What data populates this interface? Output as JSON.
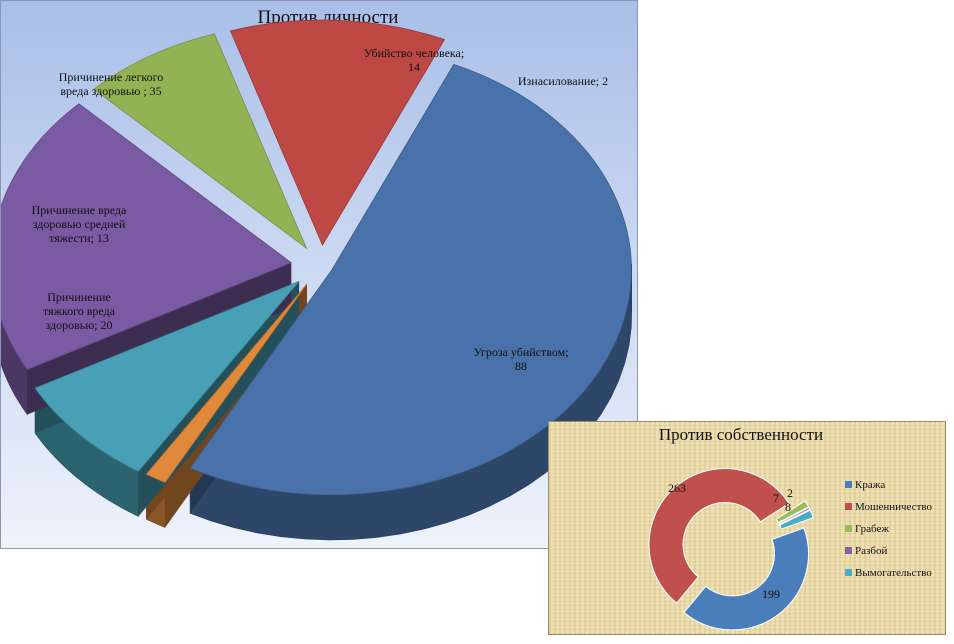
{
  "chart_data": [
    {
      "type": "pie",
      "title": "Против личности",
      "series": [
        {
          "values": [
            88,
            2,
            14,
            35,
            13,
            20
          ]
        }
      ],
      "categories": [
        "Угроза убийством",
        "Изнасилование",
        "Убийство человека",
        "Причинение легкого вреда здоровью",
        "Причинение вреда здоровью средней тяжести",
        "Причинение тяжкого вреда здоровью"
      ],
      "labels": [
        [
          "Угроза убийством;",
          "88"
        ],
        [
          "Изнасилование; 2"
        ],
        [
          "Убийство человека;",
          "14"
        ],
        [
          "Причинение легкого",
          "вреда здоровью ; 35"
        ],
        [
          "Причинение вреда",
          "здоровью средней",
          "тяжести; 13"
        ],
        [
          "Причинение",
          "тяжкого вреда",
          "здоровью; 20"
        ]
      ],
      "colors": [
        "#4a72aa",
        "#e1893a",
        "#47a0b6",
        "#7a5aa2",
        "#93b254",
        "#be4843"
      ]
    },
    {
      "type": "pie",
      "title": "Против собственности",
      "categories": [
        "Кража",
        "Мошенничество",
        "Грабеж",
        "Разбой",
        "Вымогательство"
      ],
      "values": [
        199,
        263,
        7,
        2,
        8
      ],
      "data_labels": [
        "199",
        "263",
        "7",
        "2",
        "8"
      ],
      "legend": "right",
      "colors": [
        "#4a7ebb",
        "#c0504d",
        "#9bbb59",
        "#8064a2",
        "#4bacc6"
      ]
    }
  ]
}
